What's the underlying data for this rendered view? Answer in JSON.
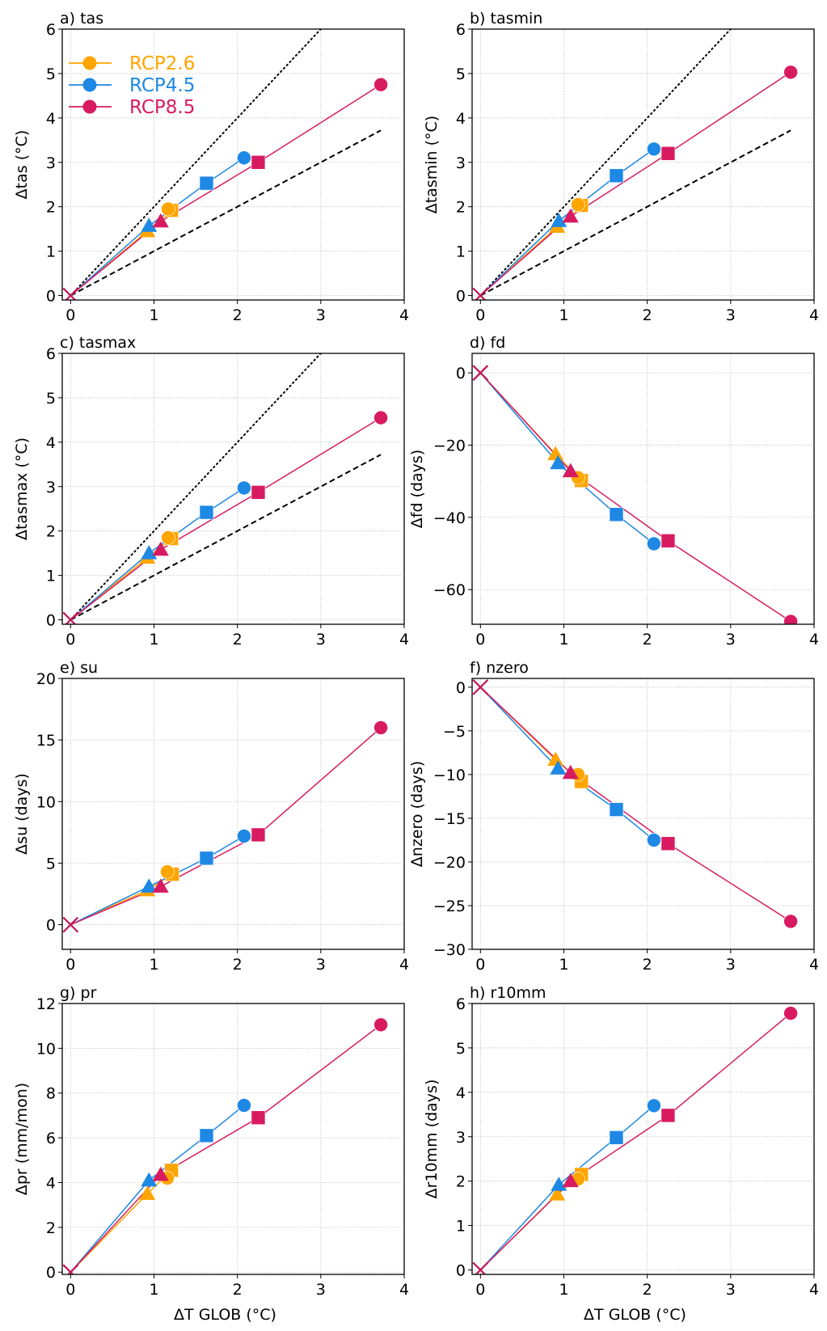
{
  "figure": {
    "xlabel": "ΔT GLOB (°C)",
    "legend": {
      "placement": "upper-left of panel a",
      "entries": [
        {
          "label": "RCP2.6",
          "color": "#FFA500"
        },
        {
          "label": "RCP4.5",
          "color": "#1E88E5"
        },
        {
          "label": "RCP8.5",
          "color": "#D81B60"
        }
      ]
    },
    "marker_legend_note": "triangle = near-term, square = mid-term, circle = far-term; x = origin",
    "reference_lines": [
      {
        "name": "slope-2",
        "style": "dotted",
        "slope": 2,
        "x_end": 3.72,
        "panels": [
          "a",
          "b",
          "c"
        ]
      },
      {
        "name": "slope-1",
        "style": "dashed",
        "slope": 1,
        "x_end": 3.72,
        "panels": [
          "a",
          "b",
          "c"
        ]
      }
    ]
  },
  "chart_data": [
    {
      "id": "a",
      "type": "line",
      "title": "a) tas",
      "ylabel": "Δtas (°C)",
      "xlim": [
        -0.1,
        4
      ],
      "ylim": [
        -0.1,
        6
      ],
      "xticks": [
        0,
        1,
        2,
        3,
        4
      ],
      "yticks": [
        0,
        1,
        2,
        3,
        4,
        5,
        6
      ],
      "grid": true,
      "series": [
        {
          "name": "RCP2.6",
          "color": "#FFA500",
          "points": [
            {
              "x": 0,
              "y": 0,
              "marker": "x"
            },
            {
              "x": 0.92,
              "y": 1.45,
              "marker": "triangle"
            },
            {
              "x": 1.21,
              "y": 1.92,
              "marker": "square"
            },
            {
              "x": 1.17,
              "y": 1.95,
              "marker": "circle",
              "unconnected": true
            }
          ]
        },
        {
          "name": "RCP4.5",
          "color": "#1E88E5",
          "points": [
            {
              "x": 0,
              "y": 0,
              "marker": "x"
            },
            {
              "x": 0.94,
              "y": 1.57,
              "marker": "triangle"
            },
            {
              "x": 1.63,
              "y": 2.53,
              "marker": "square"
            },
            {
              "x": 2.08,
              "y": 3.1,
              "marker": "circle"
            }
          ]
        },
        {
          "name": "RCP8.5",
          "color": "#D81B60",
          "points": [
            {
              "x": 0,
              "y": 0,
              "marker": "x"
            },
            {
              "x": 1.08,
              "y": 1.67,
              "marker": "triangle"
            },
            {
              "x": 2.25,
              "y": 3.0,
              "marker": "square"
            },
            {
              "x": 3.72,
              "y": 4.75,
              "marker": "circle"
            }
          ]
        }
      ]
    },
    {
      "id": "b",
      "type": "line",
      "title": "b) tasmin",
      "ylabel": "Δtasmin (°C)",
      "xlim": [
        -0.1,
        4
      ],
      "ylim": [
        -0.1,
        6
      ],
      "xticks": [
        0,
        1,
        2,
        3,
        4
      ],
      "yticks": [
        0,
        1,
        2,
        3,
        4,
        5,
        6
      ],
      "grid": true,
      "series": [
        {
          "name": "RCP2.6",
          "color": "#FFA500",
          "points": [
            {
              "x": 0,
              "y": 0,
              "marker": "x"
            },
            {
              "x": 0.92,
              "y": 1.55,
              "marker": "triangle"
            },
            {
              "x": 1.21,
              "y": 2.03,
              "marker": "square"
            },
            {
              "x": 1.17,
              "y": 2.05,
              "marker": "circle",
              "unconnected": true
            }
          ]
        },
        {
          "name": "RCP4.5",
          "color": "#1E88E5",
          "points": [
            {
              "x": 0,
              "y": 0,
              "marker": "x"
            },
            {
              "x": 0.94,
              "y": 1.68,
              "marker": "triangle"
            },
            {
              "x": 1.63,
              "y": 2.7,
              "marker": "square"
            },
            {
              "x": 2.08,
              "y": 3.3,
              "marker": "circle"
            }
          ]
        },
        {
          "name": "RCP8.5",
          "color": "#D81B60",
          "points": [
            {
              "x": 0,
              "y": 0,
              "marker": "x"
            },
            {
              "x": 1.08,
              "y": 1.78,
              "marker": "triangle"
            },
            {
              "x": 2.25,
              "y": 3.2,
              "marker": "square"
            },
            {
              "x": 3.72,
              "y": 5.03,
              "marker": "circle"
            }
          ]
        }
      ]
    },
    {
      "id": "c",
      "type": "line",
      "title": "c) tasmax",
      "ylabel": "Δtasmax (°C)",
      "xlim": [
        -0.1,
        4
      ],
      "ylim": [
        -0.1,
        6
      ],
      "xticks": [
        0,
        1,
        2,
        3,
        4
      ],
      "yticks": [
        0,
        1,
        2,
        3,
        4,
        5,
        6
      ],
      "grid": true,
      "series": [
        {
          "name": "RCP2.6",
          "color": "#FFA500",
          "points": [
            {
              "x": 0,
              "y": 0,
              "marker": "x"
            },
            {
              "x": 0.92,
              "y": 1.4,
              "marker": "triangle"
            },
            {
              "x": 1.21,
              "y": 1.83,
              "marker": "square"
            },
            {
              "x": 1.17,
              "y": 1.85,
              "marker": "circle",
              "unconnected": true
            }
          ]
        },
        {
          "name": "RCP4.5",
          "color": "#1E88E5",
          "points": [
            {
              "x": 0,
              "y": 0,
              "marker": "x"
            },
            {
              "x": 0.94,
              "y": 1.5,
              "marker": "triangle"
            },
            {
              "x": 1.63,
              "y": 2.42,
              "marker": "square"
            },
            {
              "x": 2.08,
              "y": 2.97,
              "marker": "circle"
            }
          ]
        },
        {
          "name": "RCP8.5",
          "color": "#D81B60",
          "points": [
            {
              "x": 0,
              "y": 0,
              "marker": "x"
            },
            {
              "x": 1.08,
              "y": 1.58,
              "marker": "triangle"
            },
            {
              "x": 2.25,
              "y": 2.87,
              "marker": "square"
            },
            {
              "x": 3.72,
              "y": 4.55,
              "marker": "circle"
            }
          ]
        }
      ]
    },
    {
      "id": "d",
      "type": "line",
      "title": "d) fd",
      "ylabel": "Δfd (days)",
      "xlim": [
        -0.1,
        4
      ],
      "ylim": [
        -69.6,
        5.4
      ],
      "xticks": [
        0,
        1,
        2,
        3,
        4
      ],
      "yticks": [
        -60,
        -40,
        -20,
        0
      ],
      "grid": true,
      "series": [
        {
          "name": "RCP2.6",
          "color": "#FFA500",
          "points": [
            {
              "x": 0,
              "y": 0,
              "marker": "x"
            },
            {
              "x": 0.9,
              "y": -22.5,
              "marker": "triangle"
            },
            {
              "x": 1.21,
              "y": -29.8,
              "marker": "square"
            },
            {
              "x": 1.17,
              "y": -29.0,
              "marker": "circle",
              "unconnected": true
            }
          ]
        },
        {
          "name": "RCP4.5",
          "color": "#1E88E5",
          "points": [
            {
              "x": 0,
              "y": 0,
              "marker": "x"
            },
            {
              "x": 0.93,
              "y": -25.0,
              "marker": "triangle"
            },
            {
              "x": 1.63,
              "y": -39.2,
              "marker": "square"
            },
            {
              "x": 2.08,
              "y": -47.3,
              "marker": "circle"
            }
          ]
        },
        {
          "name": "RCP8.5",
          "color": "#D81B60",
          "points": [
            {
              "x": 0,
              "y": 0,
              "marker": "x"
            },
            {
              "x": 1.08,
              "y": -27.2,
              "marker": "triangle"
            },
            {
              "x": 2.25,
              "y": -46.5,
              "marker": "square"
            },
            {
              "x": 3.72,
              "y": -68.8,
              "marker": "circle"
            }
          ]
        }
      ]
    },
    {
      "id": "e",
      "type": "line",
      "title": "e) su",
      "ylabel": "Δsu (days)",
      "xlim": [
        -0.1,
        4
      ],
      "ylim": [
        -2,
        20
      ],
      "xticks": [
        0,
        1,
        2,
        3,
        4
      ],
      "yticks": [
        0,
        5,
        10,
        15,
        20
      ],
      "grid": true,
      "series": [
        {
          "name": "RCP2.6",
          "color": "#FFA500",
          "points": [
            {
              "x": 0,
              "y": 0,
              "marker": "x"
            },
            {
              "x": 0.92,
              "y": 2.8,
              "marker": "triangle"
            },
            {
              "x": 1.22,
              "y": 4.1,
              "marker": "square"
            },
            {
              "x": 1.16,
              "y": 4.3,
              "marker": "circle",
              "unconnected": true
            }
          ]
        },
        {
          "name": "RCP4.5",
          "color": "#1E88E5",
          "points": [
            {
              "x": 0,
              "y": 0,
              "marker": "x"
            },
            {
              "x": 0.94,
              "y": 3.1,
              "marker": "triangle"
            },
            {
              "x": 1.63,
              "y": 5.4,
              "marker": "square"
            },
            {
              "x": 2.08,
              "y": 7.2,
              "marker": "circle"
            }
          ]
        },
        {
          "name": "RCP8.5",
          "color": "#D81B60",
          "points": [
            {
              "x": 0,
              "y": 0,
              "marker": "x"
            },
            {
              "x": 1.08,
              "y": 3.1,
              "marker": "triangle"
            },
            {
              "x": 2.25,
              "y": 7.3,
              "marker": "square"
            },
            {
              "x": 3.72,
              "y": 16.0,
              "marker": "circle"
            }
          ]
        }
      ]
    },
    {
      "id": "f",
      "type": "line",
      "title": "f) nzero",
      "ylabel": "Δnzero (days)",
      "xlim": [
        -0.1,
        4
      ],
      "ylim": [
        -30,
        1
      ],
      "xticks": [
        0,
        1,
        2,
        3,
        4
      ],
      "yticks": [
        -30,
        -25,
        -20,
        -15,
        -10,
        -5,
        0
      ],
      "grid": true,
      "series": [
        {
          "name": "RCP2.6",
          "color": "#FFA500",
          "points": [
            {
              "x": 0,
              "y": 0,
              "marker": "x"
            },
            {
              "x": 0.9,
              "y": -8.3,
              "marker": "triangle"
            },
            {
              "x": 1.21,
              "y": -10.8,
              "marker": "square"
            },
            {
              "x": 1.17,
              "y": -10.0,
              "marker": "circle",
              "unconnected": true
            }
          ]
        },
        {
          "name": "RCP4.5",
          "color": "#1E88E5",
          "points": [
            {
              "x": 0,
              "y": 0,
              "marker": "x"
            },
            {
              "x": 0.93,
              "y": -9.3,
              "marker": "triangle"
            },
            {
              "x": 1.63,
              "y": -14.0,
              "marker": "square"
            },
            {
              "x": 2.08,
              "y": -17.5,
              "marker": "circle"
            }
          ]
        },
        {
          "name": "RCP8.5",
          "color": "#D81B60",
          "points": [
            {
              "x": 0,
              "y": 0,
              "marker": "x"
            },
            {
              "x": 1.08,
              "y": -9.8,
              "marker": "triangle"
            },
            {
              "x": 2.25,
              "y": -17.9,
              "marker": "square"
            },
            {
              "x": 3.72,
              "y": -26.8,
              "marker": "circle"
            }
          ]
        }
      ]
    },
    {
      "id": "g",
      "type": "line",
      "title": "g) pr",
      "ylabel": "Δpr (mm/mon)",
      "xlim": [
        -0.1,
        4
      ],
      "ylim": [
        -0.1,
        12
      ],
      "xticks": [
        0,
        1,
        2,
        3,
        4
      ],
      "yticks": [
        0,
        2,
        4,
        6,
        8,
        10,
        12
      ],
      "grid": true,
      "series": [
        {
          "name": "RCP2.6",
          "color": "#FFA500",
          "points": [
            {
              "x": 0,
              "y": 0,
              "marker": "x"
            },
            {
              "x": 0.92,
              "y": 3.5,
              "marker": "triangle"
            },
            {
              "x": 1.21,
              "y": 4.55,
              "marker": "square"
            },
            {
              "x": 1.16,
              "y": 4.2,
              "marker": "circle",
              "unconnected": true
            }
          ]
        },
        {
          "name": "RCP4.5",
          "color": "#1E88E5",
          "points": [
            {
              "x": 0,
              "y": 0,
              "marker": "x"
            },
            {
              "x": 0.94,
              "y": 4.1,
              "marker": "triangle"
            },
            {
              "x": 1.63,
              "y": 6.1,
              "marker": "square"
            },
            {
              "x": 2.08,
              "y": 7.45,
              "marker": "circle"
            }
          ]
        },
        {
          "name": "RCP8.5",
          "color": "#D81B60",
          "points": [
            {
              "x": 0,
              "y": 0,
              "marker": "x"
            },
            {
              "x": 1.08,
              "y": 4.35,
              "marker": "triangle"
            },
            {
              "x": 2.25,
              "y": 6.9,
              "marker": "square"
            },
            {
              "x": 3.72,
              "y": 11.05,
              "marker": "circle"
            }
          ]
        }
      ]
    },
    {
      "id": "h",
      "type": "line",
      "title": "h) r10mm",
      "ylabel": "Δr10mm (days)",
      "xlim": [
        -0.1,
        4
      ],
      "ylim": [
        -0.1,
        6
      ],
      "xticks": [
        0,
        1,
        2,
        3,
        4
      ],
      "yticks": [
        0,
        1,
        2,
        3,
        4,
        5,
        6
      ],
      "grid": true,
      "series": [
        {
          "name": "RCP2.6",
          "color": "#FFA500",
          "points": [
            {
              "x": 0,
              "y": 0,
              "marker": "x"
            },
            {
              "x": 0.92,
              "y": 1.7,
              "marker": "triangle"
            },
            {
              "x": 1.21,
              "y": 2.15,
              "marker": "square"
            },
            {
              "x": 1.17,
              "y": 2.05,
              "marker": "circle",
              "unconnected": true
            }
          ]
        },
        {
          "name": "RCP4.5",
          "color": "#1E88E5",
          "points": [
            {
              "x": 0,
              "y": 0,
              "marker": "x"
            },
            {
              "x": 0.94,
              "y": 1.92,
              "marker": "triangle"
            },
            {
              "x": 1.63,
              "y": 2.98,
              "marker": "square"
            },
            {
              "x": 2.08,
              "y": 3.7,
              "marker": "circle"
            }
          ]
        },
        {
          "name": "RCP8.5",
          "color": "#D81B60",
          "points": [
            {
              "x": 0,
              "y": 0,
              "marker": "x"
            },
            {
              "x": 1.08,
              "y": 2.0,
              "marker": "triangle"
            },
            {
              "x": 2.25,
              "y": 3.48,
              "marker": "square"
            },
            {
              "x": 3.72,
              "y": 5.78,
              "marker": "circle"
            }
          ]
        }
      ]
    }
  ]
}
